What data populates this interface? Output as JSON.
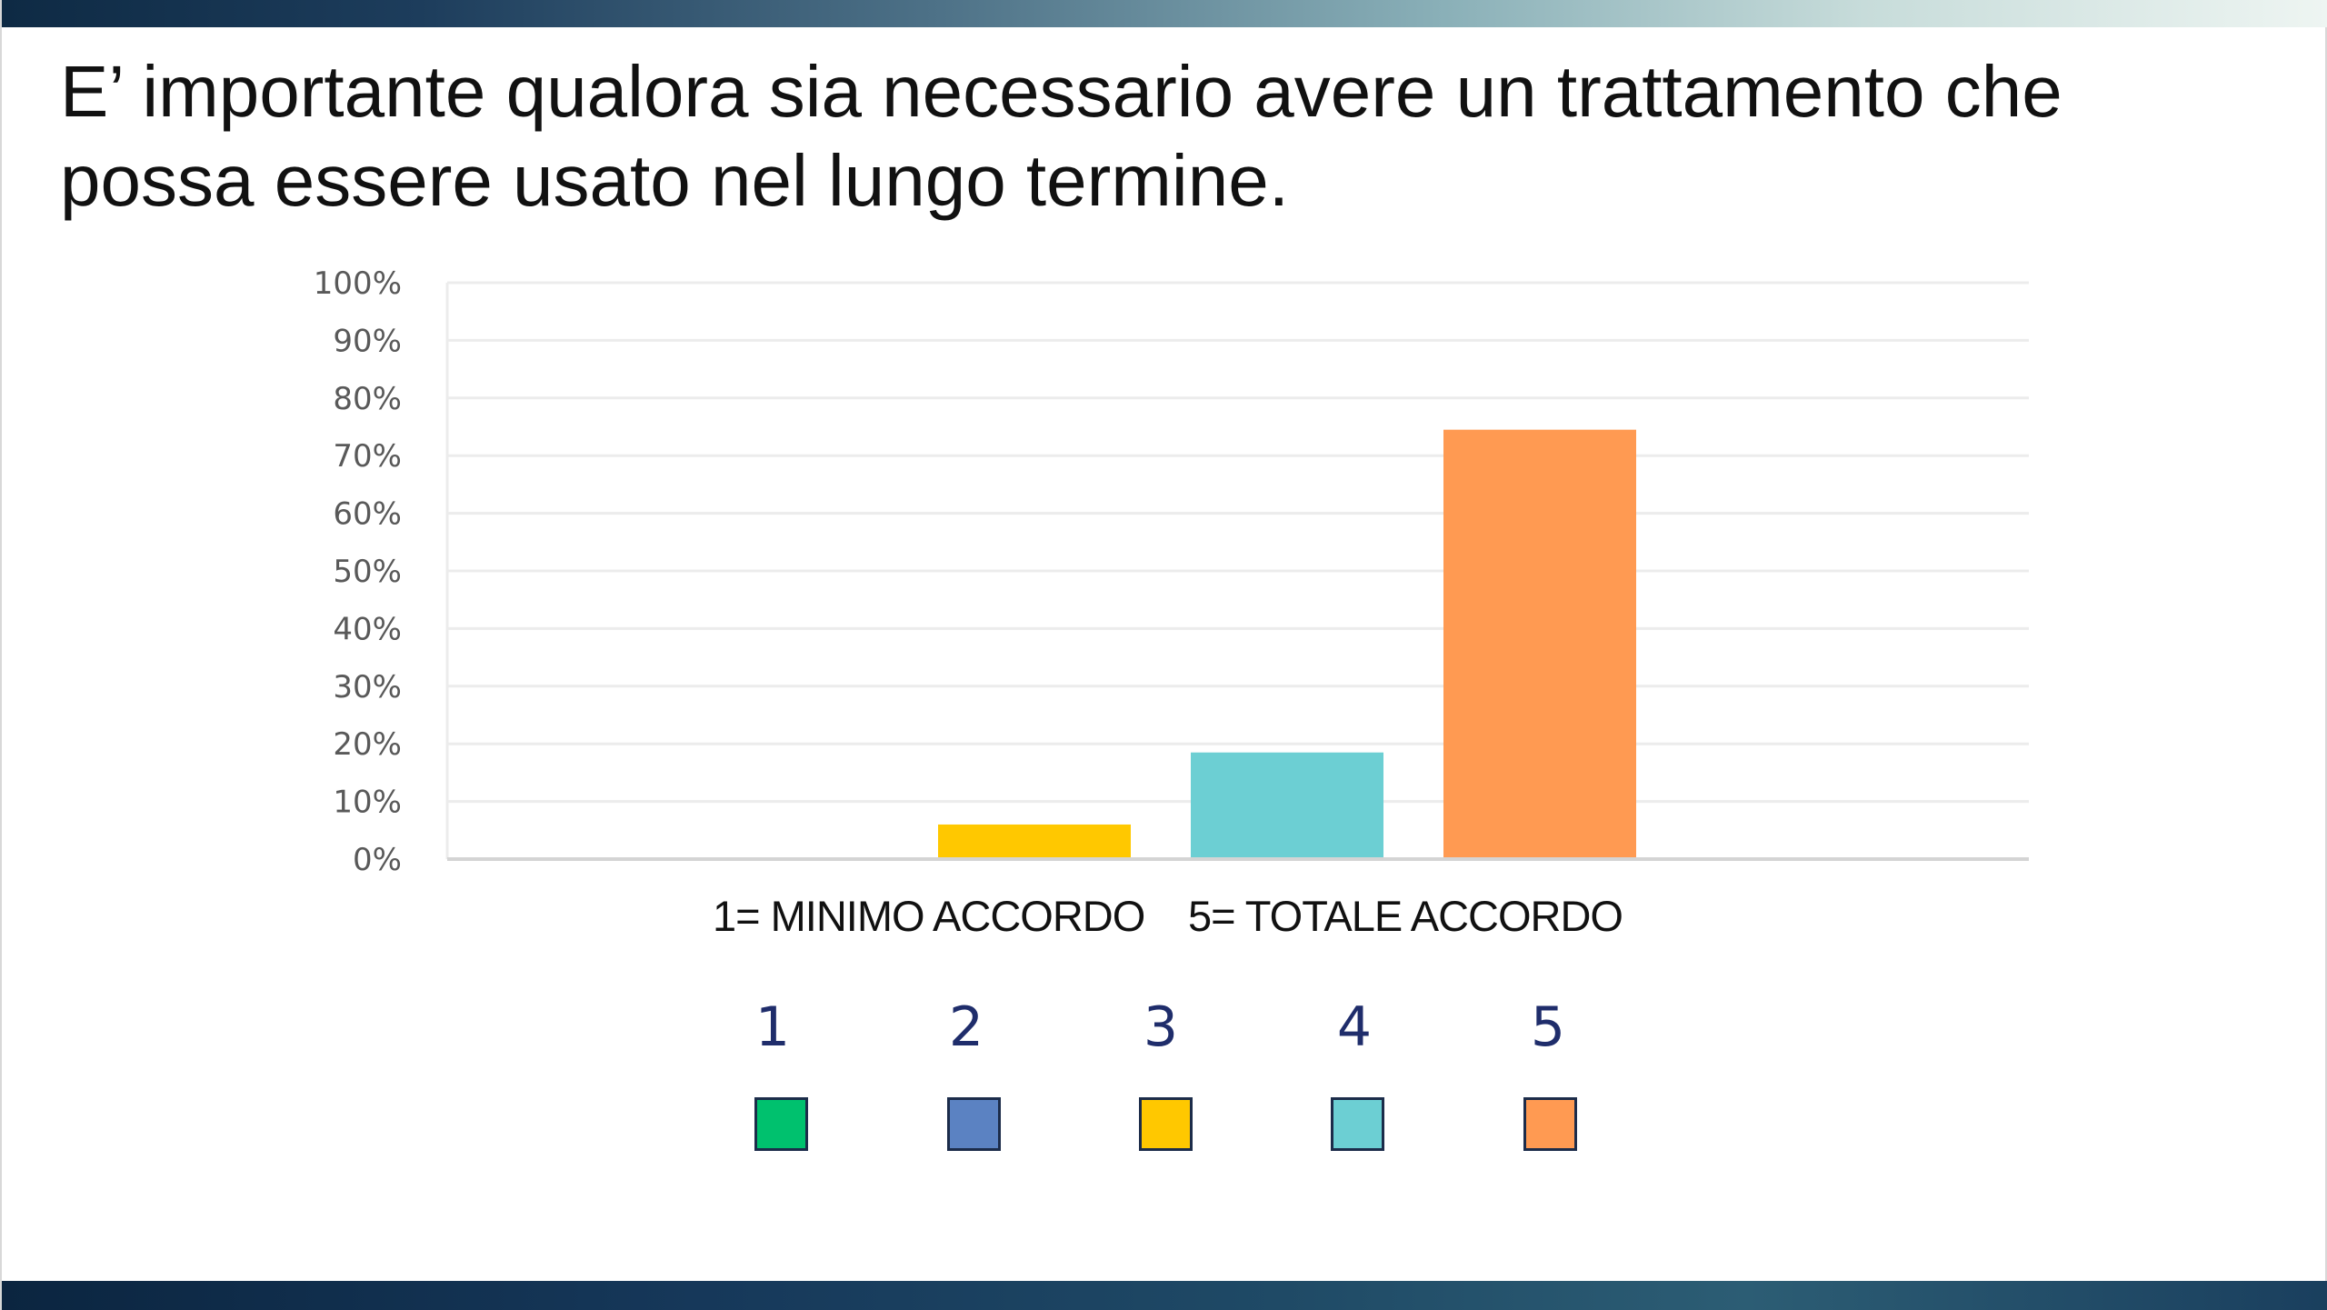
{
  "title": "E’ importante qualora sia necessario avere un trattamento che possa essere usato nel lungo termine.",
  "notes": {
    "min": "1= MINIMO ACCORDO",
    "max": "5= TOTALE ACCORDO"
  },
  "legend": [
    {
      "label": "1",
      "color": "#00c16e"
    },
    {
      "label": "2",
      "color": "#5b82c2"
    },
    {
      "label": "3",
      "color": "#ffc800"
    },
    {
      "label": "4",
      "color": "#6ccfd3"
    },
    {
      "label": "5",
      "color": "#ff9a52"
    }
  ],
  "chart_data": {
    "type": "bar",
    "categories": [
      "1",
      "2",
      "3",
      "4",
      "5"
    ],
    "values": [
      0,
      0,
      6,
      18.5,
      74.5
    ],
    "colors": [
      "#00c16e",
      "#5b82c2",
      "#ffc800",
      "#6ccfd3",
      "#ff9a52"
    ],
    "y_ticks": [
      "0%",
      "10%",
      "20%",
      "30%",
      "40%",
      "50%",
      "60%",
      "70%",
      "80%",
      "90%",
      "100%"
    ],
    "ylim": [
      0,
      100
    ],
    "grid": true,
    "title": "",
    "xlabel": "",
    "ylabel": ""
  }
}
